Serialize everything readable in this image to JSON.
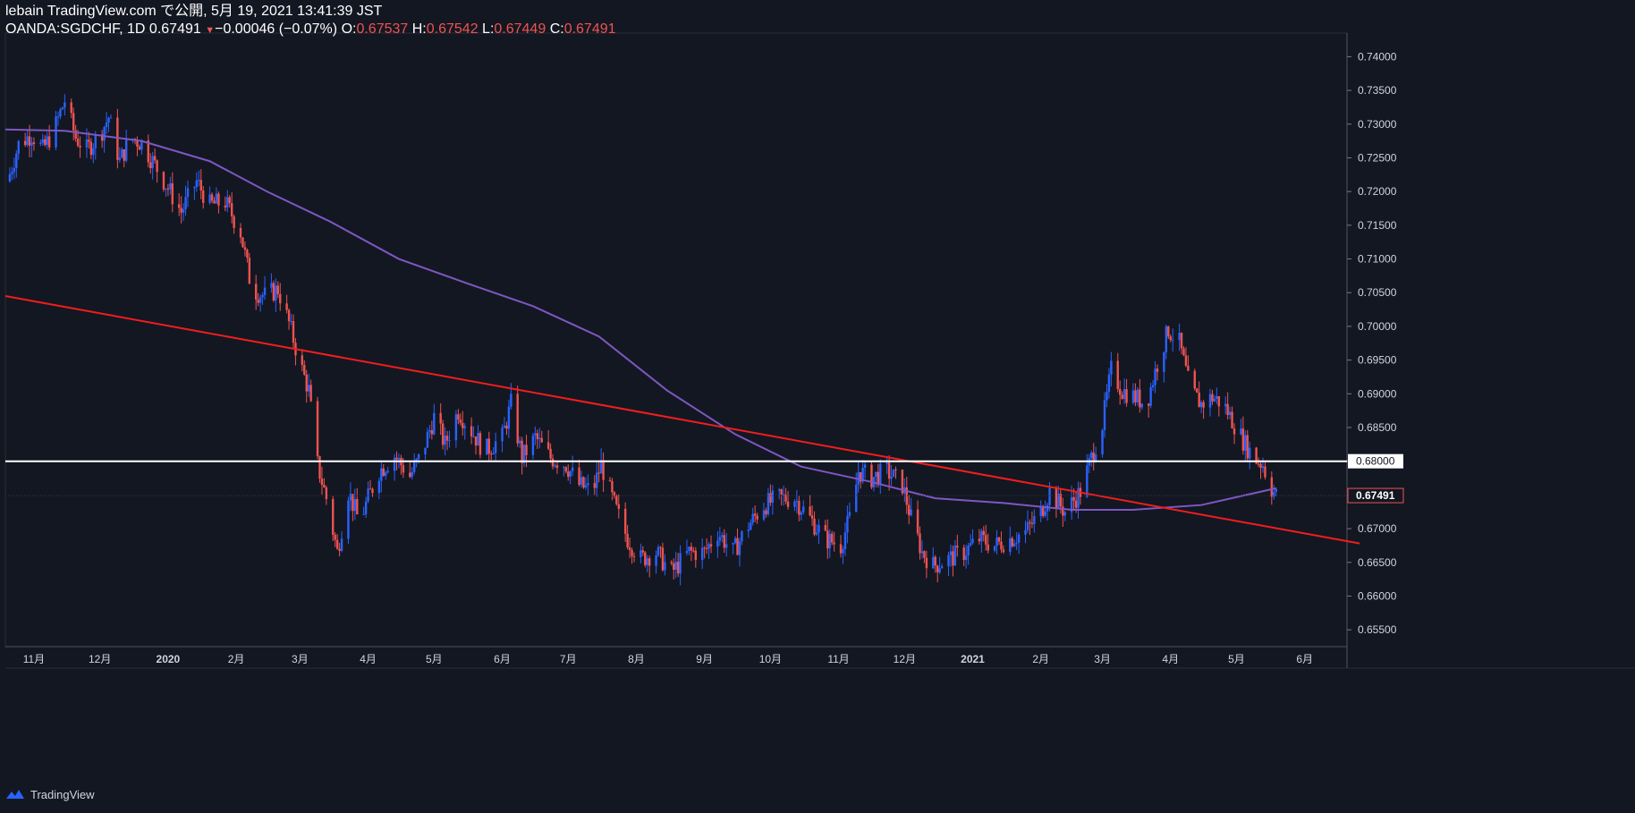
{
  "header": {
    "publisher": "lebain TradingView.com で公開, 5月 19, 2021 13:41:39 JST",
    "symbol": "OANDA:SGDCHF, 1D",
    "last": "0.67491",
    "change": "−0.00046 (−0.07%)",
    "o_label": "O:",
    "o_val": "0.67537",
    "h_label": "H:",
    "h_val": "0.67542",
    "l_label": "L:",
    "l_val": "0.67449",
    "c_label": "C:",
    "c_val": "0.67491"
  },
  "footer": {
    "brand": "TradingView"
  },
  "colors": {
    "background": "#131722",
    "up": "#2962ff",
    "down": "#ef5350",
    "ma": "#7e57c2",
    "trendline": "#f21d1d",
    "hline": "#ffffff",
    "axis_text": "#d1d4dc"
  },
  "chart_data": {
    "type": "candlestick",
    "ylim": [
      0.6525,
      0.7435
    ],
    "y_ticks": [
      "0.74000",
      "0.73500",
      "0.73000",
      "0.72500",
      "0.72000",
      "0.71500",
      "0.71000",
      "0.70500",
      "0.70000",
      "0.69500",
      "0.69000",
      "0.68500",
      "0.68000",
      "0.67500",
      "0.67000",
      "0.66500",
      "0.66000",
      "0.65500"
    ],
    "x_labels": [
      "11月",
      "12月",
      "2020",
      "2月",
      "3月",
      "4月",
      "5月",
      "6月",
      "7月",
      "8月",
      "9月",
      "10月",
      "11月",
      "12月",
      "2021",
      "2月",
      "3月",
      "4月",
      "5月",
      "6月"
    ],
    "x_label_dates": [
      "2019-11-01",
      "2019-12-01",
      "2020-01-01",
      "2020-02-01",
      "2020-03-01",
      "2020-04-01",
      "2020-05-01",
      "2020-06-01",
      "2020-07-01",
      "2020-08-01",
      "2020-09-01",
      "2020-10-01",
      "2020-11-01",
      "2020-12-01",
      "2021-01-01",
      "2021-02-01",
      "2021-03-01",
      "2021-04-01",
      "2021-05-01",
      "2021-06-01"
    ],
    "horizontal_line": {
      "value": 0.68,
      "label": "0.68000"
    },
    "last_price": {
      "value": 0.67491,
      "label": "0.67491"
    },
    "trendline": {
      "start": [
        "2019-10-19",
        0.7045
      ],
      "end": [
        "2021-06-26",
        0.6678
      ]
    },
    "close_path": [
      [
        "2019-10-20",
        0.7215
      ],
      [
        "2019-10-25",
        0.727
      ],
      [
        "2019-10-31",
        0.7285
      ],
      [
        "2019-11-05",
        0.7262
      ],
      [
        "2019-11-10",
        0.729
      ],
      [
        "2019-11-15",
        0.7335
      ],
      [
        "2019-11-20",
        0.728
      ],
      [
        "2019-11-25",
        0.7262
      ],
      [
        "2019-12-01",
        0.7285
      ],
      [
        "2019-12-05",
        0.731
      ],
      [
        "2019-12-10",
        0.7245
      ],
      [
        "2019-12-15",
        0.728
      ],
      [
        "2019-12-20",
        0.7272
      ],
      [
        "2019-12-25",
        0.7245
      ],
      [
        "2020-01-01",
        0.7205
      ],
      [
        "2020-01-07",
        0.717
      ],
      [
        "2020-01-14",
        0.7215
      ],
      [
        "2020-01-20",
        0.718
      ],
      [
        "2020-01-27",
        0.7185
      ],
      [
        "2020-02-03",
        0.714
      ],
      [
        "2020-02-08",
        0.7055
      ],
      [
        "2020-02-14",
        0.7045
      ],
      [
        "2020-02-20",
        0.7055
      ],
      [
        "2020-02-25",
        0.7005
      ],
      [
        "2020-03-01",
        0.6945
      ],
      [
        "2020-03-05",
        0.6905
      ],
      [
        "2020-03-09",
        0.6795
      ],
      [
        "2020-03-13",
        0.6745
      ],
      [
        "2020-03-18",
        0.6665
      ],
      [
        "2020-03-23",
        0.6755
      ],
      [
        "2020-03-28",
        0.671
      ],
      [
        "2020-04-01",
        0.6745
      ],
      [
        "2020-04-06",
        0.6785
      ],
      [
        "2020-04-13",
        0.6808
      ],
      [
        "2020-04-20",
        0.6778
      ],
      [
        "2020-04-25",
        0.6808
      ],
      [
        "2020-05-01",
        0.6865
      ],
      [
        "2020-05-06",
        0.6825
      ],
      [
        "2020-05-12",
        0.6875
      ],
      [
        "2020-05-18",
        0.6845
      ],
      [
        "2020-05-24",
        0.6815
      ],
      [
        "2020-06-01",
        0.6835
      ],
      [
        "2020-06-05",
        0.6885
      ],
      [
        "2020-06-10",
        0.6805
      ],
      [
        "2020-06-16",
        0.6835
      ],
      [
        "2020-06-23",
        0.6805
      ],
      [
        "2020-06-30",
        0.6795
      ],
      [
        "2020-07-06",
        0.6765
      ],
      [
        "2020-07-12",
        0.6755
      ],
      [
        "2020-07-16",
        0.6795
      ],
      [
        "2020-07-22",
        0.6735
      ],
      [
        "2020-07-28",
        0.6685
      ],
      [
        "2020-08-03",
        0.6655
      ],
      [
        "2020-08-10",
        0.6665
      ],
      [
        "2020-08-17",
        0.6635
      ],
      [
        "2020-08-25",
        0.6665
      ],
      [
        "2020-09-01",
        0.6665
      ],
      [
        "2020-09-07",
        0.6695
      ],
      [
        "2020-09-14",
        0.6665
      ],
      [
        "2020-09-21",
        0.6705
      ],
      [
        "2020-09-28",
        0.6735
      ],
      [
        "2020-10-05",
        0.6745
      ],
      [
        "2020-10-12",
        0.6745
      ],
      [
        "2020-10-19",
        0.6715
      ],
      [
        "2020-10-26",
        0.6685
      ],
      [
        "2020-11-02",
        0.6675
      ],
      [
        "2020-11-07",
        0.6725
      ],
      [
        "2020-11-10",
        0.6785
      ],
      [
        "2020-11-16",
        0.6775
      ],
      [
        "2020-11-23",
        0.6785
      ],
      [
        "2020-11-30",
        0.6765
      ],
      [
        "2020-12-04",
        0.6715
      ],
      [
        "2020-12-09",
        0.6665
      ],
      [
        "2020-12-14",
        0.6645
      ],
      [
        "2020-12-21",
        0.6655
      ],
      [
        "2020-12-28",
        0.6665
      ],
      [
        "2021-01-04",
        0.6685
      ],
      [
        "2021-01-11",
        0.6675
      ],
      [
        "2021-01-18",
        0.6685
      ],
      [
        "2021-01-25",
        0.6695
      ],
      [
        "2021-02-01",
        0.6725
      ],
      [
        "2021-02-05",
        0.6755
      ],
      [
        "2021-02-12",
        0.6725
      ],
      [
        "2021-02-19",
        0.6755
      ],
      [
        "2021-02-24",
        0.6805
      ],
      [
        "2021-03-01",
        0.6855
      ],
      [
        "2021-03-05",
        0.6935
      ],
      [
        "2021-03-10",
        0.6905
      ],
      [
        "2021-03-16",
        0.6895
      ],
      [
        "2021-03-21",
        0.6885
      ],
      [
        "2021-03-26",
        0.6945
      ],
      [
        "2021-03-31",
        0.6995
      ],
      [
        "2021-04-05",
        0.6975
      ],
      [
        "2021-04-10",
        0.6905
      ],
      [
        "2021-04-15",
        0.6885
      ],
      [
        "2021-04-20",
        0.6895
      ],
      [
        "2021-04-25",
        0.6885
      ],
      [
        "2021-04-30",
        0.6855
      ],
      [
        "2021-05-05",
        0.6825
      ],
      [
        "2021-05-09",
        0.6805
      ],
      [
        "2021-05-13",
        0.6795
      ],
      [
        "2021-05-16",
        0.6765
      ],
      [
        "2021-05-19",
        0.6749
      ]
    ],
    "moving_average": [
      [
        "2019-10-19",
        0.7292
      ],
      [
        "2019-11-15",
        0.729
      ],
      [
        "2019-12-20",
        0.7275
      ],
      [
        "2020-01-20",
        0.7245
      ],
      [
        "2020-02-15",
        0.72
      ],
      [
        "2020-03-15",
        0.7155
      ],
      [
        "2020-04-15",
        0.71
      ],
      [
        "2020-05-15",
        0.7065
      ],
      [
        "2020-06-15",
        0.703
      ],
      [
        "2020-07-15",
        0.6985
      ],
      [
        "2020-08-15",
        0.6905
      ],
      [
        "2020-09-15",
        0.684
      ],
      [
        "2020-10-15",
        0.6792
      ],
      [
        "2020-11-15",
        0.677
      ],
      [
        "2020-12-15",
        0.6745
      ],
      [
        "2021-01-15",
        0.6738
      ],
      [
        "2021-02-15",
        0.6728
      ],
      [
        "2021-03-15",
        0.6728
      ],
      [
        "2021-04-15",
        0.6735
      ],
      [
        "2021-05-19",
        0.676
      ]
    ]
  }
}
